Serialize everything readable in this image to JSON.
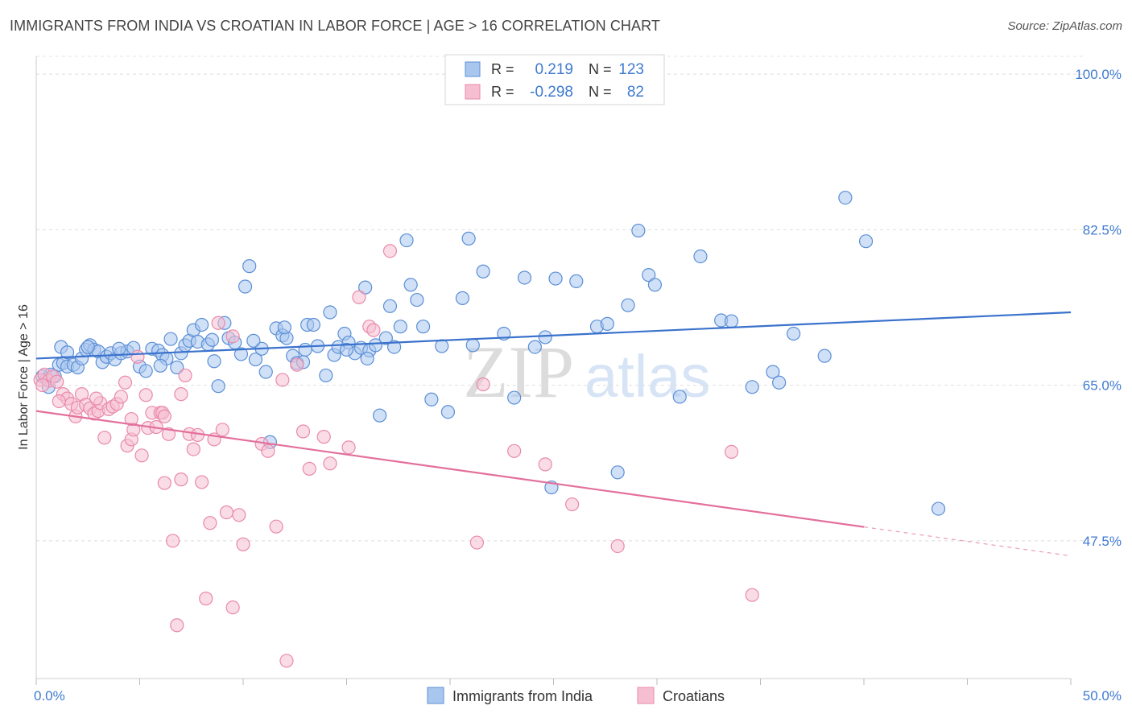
{
  "header": {
    "title": "IMMIGRANTS FROM INDIA VS CROATIAN IN LABOR FORCE | AGE > 16 CORRELATION CHART",
    "source": "Source: ZipAtlas.com"
  },
  "watermark": {
    "zip": "ZIP",
    "atlas": "atlas"
  },
  "chart_data": {
    "type": "scatter",
    "title": "IMMIGRANTS FROM INDIA VS CROATIAN IN LABOR FORCE | AGE > 16 CORRELATION CHART",
    "xlabel": "",
    "ylabel": "In Labor Force | Age > 16",
    "xlim": [
      0,
      50
    ],
    "ylim": [
      32,
      102
    ],
    "x_tick_labels": [
      "0.0%",
      "50.0%"
    ],
    "y_ticks": [
      47.5,
      65.0,
      82.5,
      100.0
    ],
    "y_tick_labels": [
      "47.5%",
      "65.0%",
      "82.5%",
      "100.0%"
    ],
    "grid": true,
    "legend": {
      "position": "top-center",
      "rows": [
        {
          "r_label": "R =",
          "r_value": "0.219",
          "n_label": "N =",
          "n_value": "123"
        },
        {
          "r_label": "R =",
          "r_value": "-0.298",
          "n_label": "N =",
          "n_value": "82"
        }
      ]
    },
    "bottom_legend": [
      "Immigrants from India",
      "Croatians"
    ],
    "colors": {
      "india_fill": "#a9c7ee",
      "india_stroke": "#5b8fd6",
      "india_line": "#3a72cc",
      "croatian_fill": "#f6bfd1",
      "croatian_stroke": "#e98aaa",
      "croatian_line": "#e3709b",
      "tick_label": "#3f7ad0"
    },
    "series": [
      {
        "name": "Immigrants from India",
        "trend": {
          "x": [
            0,
            50
          ],
          "y": [
            68.0,
            73.2
          ],
          "dashed_from": null
        },
        "points": [
          [
            0.3,
            66.0
          ],
          [
            0.5,
            65.7
          ],
          [
            0.7,
            66.2
          ],
          [
            0.9,
            66.0
          ],
          [
            1.1,
            67.3
          ],
          [
            1.3,
            67.5
          ],
          [
            1.5,
            67.1
          ],
          [
            1.8,
            67.3
          ],
          [
            1.2,
            69.3
          ],
          [
            1.5,
            68.7
          ],
          [
            2.0,
            67.0
          ],
          [
            2.2,
            68.0
          ],
          [
            2.4,
            69.0
          ],
          [
            2.6,
            69.5
          ],
          [
            2.8,
            69.0
          ],
          [
            3.0,
            68.8
          ],
          [
            3.2,
            67.6
          ],
          [
            3.4,
            68.2
          ],
          [
            3.6,
            68.6
          ],
          [
            3.8,
            67.9
          ],
          [
            4.1,
            68.6
          ],
          [
            4.4,
            68.8
          ],
          [
            4.7,
            69.2
          ],
          [
            5.0,
            67.1
          ],
          [
            5.3,
            66.6
          ],
          [
            5.6,
            69.1
          ],
          [
            5.9,
            68.9
          ],
          [
            6.1,
            68.4
          ],
          [
            6.3,
            68.0
          ],
          [
            6.5,
            70.2
          ],
          [
            6.8,
            67.0
          ],
          [
            7.0,
            68.6
          ],
          [
            7.2,
            69.5
          ],
          [
            7.4,
            70.0
          ],
          [
            7.6,
            71.2
          ],
          [
            7.8,
            69.9
          ],
          [
            8.0,
            71.8
          ],
          [
            8.3,
            69.6
          ],
          [
            8.6,
            67.7
          ],
          [
            8.8,
            64.9
          ],
          [
            9.1,
            72.0
          ],
          [
            9.3,
            70.3
          ],
          [
            9.6,
            69.8
          ],
          [
            9.9,
            68.5
          ],
          [
            10.1,
            76.1
          ],
          [
            10.3,
            78.4
          ],
          [
            10.6,
            67.9
          ],
          [
            10.9,
            69.1
          ],
          [
            11.1,
            66.5
          ],
          [
            11.3,
            58.6
          ],
          [
            11.6,
            71.4
          ],
          [
            11.9,
            70.6
          ],
          [
            12.1,
            70.3
          ],
          [
            12.4,
            68.3
          ],
          [
            12.6,
            67.5
          ],
          [
            12.9,
            67.6
          ],
          [
            13.1,
            71.8
          ],
          [
            13.4,
            71.8
          ],
          [
            13.6,
            69.4
          ],
          [
            14.0,
            66.1
          ],
          [
            14.2,
            73.2
          ],
          [
            14.4,
            68.4
          ],
          [
            14.6,
            69.3
          ],
          [
            14.9,
            70.8
          ],
          [
            15.1,
            69.8
          ],
          [
            15.4,
            68.6
          ],
          [
            15.7,
            69.2
          ],
          [
            15.9,
            76.0
          ],
          [
            16.1,
            68.9
          ],
          [
            16.4,
            69.5
          ],
          [
            16.6,
            61.6
          ],
          [
            16.9,
            70.3
          ],
          [
            17.1,
            73.9
          ],
          [
            17.3,
            69.3
          ],
          [
            17.6,
            71.6
          ],
          [
            17.9,
            81.3
          ],
          [
            18.1,
            76.3
          ],
          [
            18.4,
            74.6
          ],
          [
            18.7,
            71.6
          ],
          [
            19.1,
            63.4
          ],
          [
            19.6,
            69.4
          ],
          [
            19.9,
            62.0
          ],
          [
            20.6,
            74.8
          ],
          [
            20.9,
            81.5
          ],
          [
            21.1,
            69.5
          ],
          [
            21.6,
            77.8
          ],
          [
            22.6,
            70.8
          ],
          [
            23.1,
            63.6
          ],
          [
            23.6,
            77.1
          ],
          [
            24.1,
            69.3
          ],
          [
            24.6,
            70.4
          ],
          [
            24.9,
            53.5
          ],
          [
            25.1,
            77.0
          ],
          [
            26.1,
            76.7
          ],
          [
            27.1,
            71.6
          ],
          [
            27.6,
            71.9
          ],
          [
            28.1,
            55.2
          ],
          [
            28.6,
            74.0
          ],
          [
            29.1,
            82.4
          ],
          [
            29.6,
            77.4
          ],
          [
            29.9,
            76.3
          ],
          [
            31.1,
            63.7
          ],
          [
            32.1,
            79.5
          ],
          [
            33.1,
            72.3
          ],
          [
            33.6,
            72.2
          ],
          [
            34.6,
            64.8
          ],
          [
            35.6,
            66.5
          ],
          [
            35.9,
            65.3
          ],
          [
            36.6,
            70.8
          ],
          [
            38.1,
            68.3
          ],
          [
            39.1,
            86.1
          ],
          [
            40.1,
            81.2
          ],
          [
            43.6,
            51.1
          ],
          [
            0.6,
            64.8
          ],
          [
            2.5,
            69.3
          ],
          [
            4.0,
            69.1
          ],
          [
            6.0,
            67.2
          ],
          [
            8.5,
            70.1
          ],
          [
            10.5,
            70.0
          ],
          [
            12.0,
            71.5
          ],
          [
            13.0,
            69.0
          ],
          [
            15.0,
            69.0
          ],
          [
            16.0,
            68.0
          ]
        ]
      },
      {
        "name": "Croatians",
        "trend": {
          "x": [
            0,
            50
          ],
          "y": [
            62.1,
            45.8
          ],
          "dashed_from": 40.0
        },
        "points": [
          [
            0.2,
            65.6
          ],
          [
            0.4,
            66.2
          ],
          [
            0.6,
            65.5
          ],
          [
            0.8,
            66.0
          ],
          [
            1.0,
            65.4
          ],
          [
            1.3,
            64.0
          ],
          [
            1.5,
            63.5
          ],
          [
            1.7,
            62.9
          ],
          [
            1.9,
            61.5
          ],
          [
            2.0,
            62.5
          ],
          [
            2.2,
            64.0
          ],
          [
            2.4,
            62.8
          ],
          [
            2.6,
            62.4
          ],
          [
            2.8,
            61.8
          ],
          [
            3.0,
            62.1
          ],
          [
            3.1,
            63.0
          ],
          [
            3.3,
            59.1
          ],
          [
            3.5,
            62.3
          ],
          [
            3.7,
            62.6
          ],
          [
            3.9,
            62.9
          ],
          [
            4.1,
            63.7
          ],
          [
            4.3,
            65.3
          ],
          [
            4.4,
            58.2
          ],
          [
            4.6,
            58.9
          ],
          [
            4.7,
            60.0
          ],
          [
            4.9,
            68.2
          ],
          [
            5.1,
            57.1
          ],
          [
            5.3,
            63.9
          ],
          [
            5.4,
            60.2
          ],
          [
            5.6,
            61.9
          ],
          [
            5.8,
            60.3
          ],
          [
            6.0,
            61.9
          ],
          [
            6.1,
            61.9
          ],
          [
            6.2,
            54.0
          ],
          [
            6.4,
            59.5
          ],
          [
            6.6,
            47.5
          ],
          [
            6.8,
            38.0
          ],
          [
            7.0,
            54.4
          ],
          [
            7.2,
            66.1
          ],
          [
            7.4,
            59.5
          ],
          [
            7.6,
            57.8
          ],
          [
            7.8,
            59.4
          ],
          [
            8.0,
            54.1
          ],
          [
            8.2,
            41.0
          ],
          [
            8.4,
            49.5
          ],
          [
            8.6,
            58.9
          ],
          [
            8.8,
            72.0
          ],
          [
            9.0,
            60.0
          ],
          [
            9.2,
            50.7
          ],
          [
            9.5,
            40.0
          ],
          [
            9.8,
            50.4
          ],
          [
            10.0,
            47.1
          ],
          [
            10.9,
            58.4
          ],
          [
            11.2,
            57.6
          ],
          [
            11.6,
            49.1
          ],
          [
            11.9,
            65.6
          ],
          [
            12.1,
            34.0
          ],
          [
            12.6,
            67.3
          ],
          [
            12.9,
            59.8
          ],
          [
            13.2,
            55.6
          ],
          [
            13.9,
            59.2
          ],
          [
            14.2,
            56.2
          ],
          [
            15.1,
            58.0
          ],
          [
            15.6,
            74.9
          ],
          [
            16.1,
            71.6
          ],
          [
            16.3,
            71.2
          ],
          [
            17.1,
            80.1
          ],
          [
            21.3,
            47.3
          ],
          [
            21.6,
            65.1
          ],
          [
            23.1,
            57.6
          ],
          [
            24.6,
            56.1
          ],
          [
            25.9,
            51.6
          ],
          [
            28.1,
            46.9
          ],
          [
            33.6,
            57.5
          ],
          [
            34.6,
            41.4
          ],
          [
            0.3,
            65.0
          ],
          [
            1.1,
            63.2
          ],
          [
            2.9,
            63.5
          ],
          [
            4.6,
            61.2
          ],
          [
            6.2,
            61.5
          ],
          [
            7.0,
            64.0
          ],
          [
            9.5,
            70.5
          ]
        ]
      }
    ]
  }
}
